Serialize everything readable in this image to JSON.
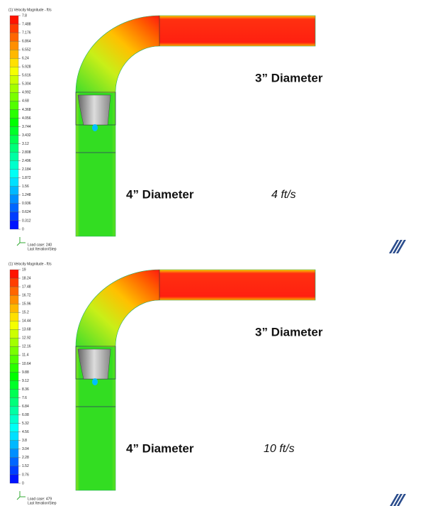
{
  "panels": [
    {
      "legend": {
        "title": "(1) Velocity Magnitude - ft/s",
        "labels": [
          7.8,
          7.488,
          7.176,
          6.864,
          6.552,
          6.24,
          5.928,
          5.616,
          5.304,
          4.992,
          4.68,
          4.368,
          4.056,
          3.744,
          3.432,
          3.12,
          2.808,
          2.496,
          2.184,
          1.872,
          1.56,
          1.248,
          0.936,
          0.624,
          0.312,
          0
        ]
      },
      "load_case": "Load case: 240",
      "last_step": "Last Iteration/Step",
      "label_3in": "3” Diameter",
      "label_4in": "4” Diameter",
      "speed": "4 ft/s"
    },
    {
      "legend": {
        "title": "(1) Velocity Magnitude - ft/s",
        "labels": [
          19,
          18.24,
          17.48,
          16.72,
          15.96,
          15.2,
          14.44,
          13.68,
          12.92,
          12.16,
          11.4,
          10.64,
          9.88,
          9.12,
          8.36,
          7.6,
          6.84,
          6.08,
          5.32,
          4.56,
          3.8,
          3.04,
          2.28,
          1.52,
          0.76,
          0
        ]
      },
      "load_case": "Load case: 479",
      "last_step": "Last Iteration/Step",
      "label_3in": "3” Diameter",
      "label_4in": "4” Diameter",
      "speed": "10 ft/s"
    }
  ]
}
